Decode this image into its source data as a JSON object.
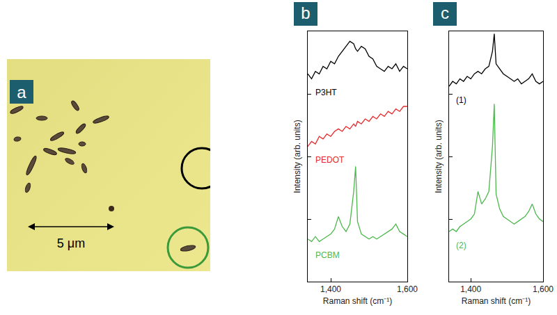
{
  "micrograph": {
    "panel": "a",
    "scale_bar_label": "5 μm"
  },
  "chart_data": [
    {
      "type": "line",
      "panel": "b",
      "xlabel": "Raman shift (cm⁻¹)",
      "ylabel": "Intensity (arb. units)",
      "x": [
        1340,
        1350,
        1360,
        1370,
        1380,
        1390,
        1400,
        1410,
        1420,
        1430,
        1440,
        1450,
        1460,
        1465,
        1470,
        1480,
        1490,
        1500,
        1510,
        1520,
        1530,
        1540,
        1550,
        1560,
        1570,
        1580,
        1590,
        1600
      ],
      "xlim": [
        1340,
        1600
      ],
      "xticks": [
        {
          "value": 1400,
          "label": "1,400"
        },
        {
          "value": 1600,
          "label": "1,600"
        }
      ],
      "ylim": [
        0,
        10
      ],
      "yticks": [
        2.5,
        5,
        7.5
      ],
      "tick_labels": "x",
      "grid": false,
      "series": [
        {
          "name": "P3HT",
          "color": "#000000",
          "values": [
            8.3,
            8.1,
            8.4,
            8.3,
            8.6,
            8.5,
            8.8,
            8.7,
            9.0,
            9.2,
            9.4,
            9.6,
            9.5,
            9.3,
            9.2,
            9.4,
            9.3,
            9.0,
            8.9,
            8.6,
            8.5,
            8.4,
            8.6,
            8.5,
            8.7,
            8.4,
            8.6,
            8.5
          ]
        },
        {
          "name": "PEDOT",
          "color": "#e8282a",
          "values": [
            5.4,
            5.6,
            5.5,
            5.8,
            5.7,
            5.9,
            5.8,
            6.0,
            6.1,
            6.0,
            6.2,
            6.1,
            6.3,
            6.2,
            6.4,
            6.3,
            6.5,
            6.4,
            6.6,
            6.5,
            6.7,
            6.6,
            6.8,
            6.7,
            6.9,
            6.8,
            7.0,
            7.0
          ]
        },
        {
          "name": "PCBM",
          "color": "#4cb84c",
          "values": [
            1.7,
            1.6,
            1.8,
            1.6,
            1.7,
            1.8,
            1.9,
            2.1,
            2.6,
            2.2,
            2.0,
            2.3,
            3.6,
            4.6,
            2.4,
            1.9,
            1.8,
            1.7,
            1.8,
            1.7,
            1.8,
            1.9,
            2.0,
            2.1,
            2.3,
            2.0,
            1.9,
            1.8
          ]
        }
      ]
    },
    {
      "type": "line",
      "panel": "c",
      "xlabel": "Raman shift (cm⁻¹)",
      "ylabel": "Intensity (arb. units)",
      "x": [
        1340,
        1350,
        1360,
        1370,
        1380,
        1390,
        1400,
        1410,
        1420,
        1430,
        1440,
        1450,
        1460,
        1465,
        1470,
        1480,
        1490,
        1500,
        1510,
        1520,
        1530,
        1540,
        1550,
        1560,
        1570,
        1580,
        1590,
        1600
      ],
      "xlim": [
        1340,
        1600
      ],
      "xticks": [
        {
          "value": 1400,
          "label": "1,400"
        },
        {
          "value": 1600,
          "label": "1,600"
        }
      ],
      "ylim": [
        0,
        10
      ],
      "yticks": [
        2.5,
        5,
        7.5
      ],
      "tick_labels": "x",
      "grid": false,
      "series": [
        {
          "name": "(1)",
          "color": "#000000",
          "values": [
            7.8,
            8.0,
            7.9,
            8.1,
            8.0,
            8.2,
            8.1,
            8.3,
            8.4,
            8.3,
            8.5,
            8.6,
            9.2,
            9.9,
            8.7,
            8.5,
            8.3,
            8.2,
            8.1,
            8.0,
            8.1,
            7.9,
            8.0,
            8.1,
            8.3,
            8.0,
            7.9,
            8.0
          ]
        },
        {
          "name": "(2)",
          "color": "#4cb84c",
          "values": [
            2.0,
            2.1,
            2.0,
            2.2,
            2.3,
            2.4,
            2.5,
            2.7,
            3.6,
            3.1,
            3.3,
            3.6,
            5.4,
            7.1,
            3.5,
            2.9,
            2.6,
            2.5,
            2.4,
            2.3,
            2.4,
            2.5,
            2.6,
            2.8,
            3.1,
            2.7,
            2.5,
            2.4
          ]
        }
      ]
    }
  ]
}
